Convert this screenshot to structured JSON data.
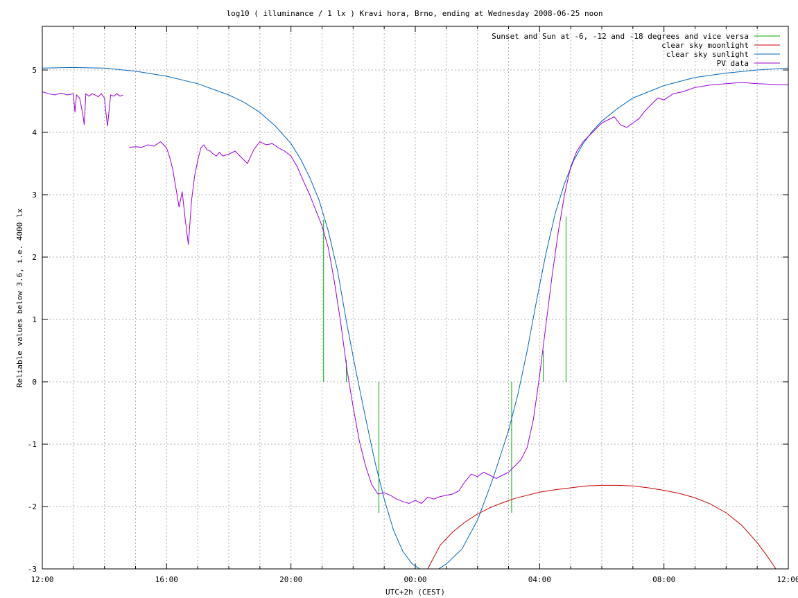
{
  "chart_data": {
    "type": "line",
    "title": "log10 ( illuminance / 1 lx ) Kravi hora, Brno, ending at Wednesday 2008-06-25 noon",
    "xlabel": "UTC+2h (CEST)",
    "ylabel": "Reliable values below 3.6, i.e. 4000 lx",
    "xlim": [
      12,
      36
    ],
    "ylim": [
      -3,
      5.7
    ],
    "x_ticks": [
      12,
      16,
      20,
      24,
      28,
      32,
      36
    ],
    "x_tick_labels": [
      "12:00",
      "16:00",
      "20:00",
      "00:00",
      "04:00",
      "08:00",
      "12:00"
    ],
    "x_minor_ticks": [
      13,
      14,
      15,
      17,
      18,
      19,
      21,
      22,
      23,
      25,
      26,
      27,
      29,
      30,
      31,
      33,
      34,
      35
    ],
    "y_ticks": [
      -3,
      -2,
      -1,
      0,
      1,
      2,
      3,
      4,
      5
    ],
    "y_tick_labels": [
      "-3",
      "-2",
      "-1",
      "0",
      "1",
      "2",
      "3",
      "4",
      "5"
    ],
    "grid": true,
    "legend_position": "top-right",
    "series": [
      {
        "name": "Sunset and Sun at -6, -12 and -18 degrees and vice versa",
        "color": "#00aa00",
        "style": "impulses",
        "x": [
          21.05,
          21.78,
          22.83,
          27.1,
          28.12,
          28.85
        ],
        "y": [
          2.6,
          0.35,
          0.0,
          0.0,
          0.5,
          2.65
        ],
        "y_end": [
          0.0,
          0.0,
          -2.1,
          -2.1,
          0.0,
          0.0
        ]
      },
      {
        "name": "clear sky moonlight",
        "color": "#cc0000",
        "x": [
          24.4,
          24.8,
          25.2,
          25.6,
          26.0,
          26.4,
          26.8,
          27.2,
          27.6,
          28.0,
          28.5,
          29.0,
          29.5,
          30.0,
          30.5,
          31.0,
          31.5,
          32.0,
          32.5,
          33.0,
          33.5,
          34.0,
          34.5,
          35.0,
          35.3,
          35.6
        ],
        "y": [
          -3.0,
          -2.62,
          -2.41,
          -2.25,
          -2.12,
          -2.02,
          -1.94,
          -1.87,
          -1.82,
          -1.77,
          -1.73,
          -1.7,
          -1.67,
          -1.66,
          -1.66,
          -1.67,
          -1.7,
          -1.74,
          -1.79,
          -1.86,
          -1.96,
          -2.1,
          -2.3,
          -2.58,
          -2.78,
          -3.0
        ]
      },
      {
        "name": "clear sky sunlight",
        "color": "#0066bb",
        "x": [
          12,
          13,
          14,
          15,
          16,
          17,
          18,
          18.5,
          19,
          19.5,
          20,
          20.3,
          20.6,
          20.9,
          21.2,
          21.5,
          21.8,
          22.1,
          22.4,
          22.7,
          23.0,
          23.3,
          23.6,
          23.9,
          24.2,
          24.35,
          24.6,
          25.0,
          25.5,
          26.0,
          26.5,
          27.0,
          27.3,
          27.6,
          27.9,
          28.2,
          28.5,
          28.8,
          29.1,
          29.4,
          29.7,
          30.0,
          30.5,
          31.0,
          32.0,
          33.0,
          34.0,
          35.0,
          36.0
        ],
        "y": [
          5.03,
          5.04,
          5.03,
          4.98,
          4.9,
          4.78,
          4.6,
          4.48,
          4.32,
          4.1,
          3.82,
          3.58,
          3.28,
          2.92,
          2.42,
          1.78,
          0.92,
          0.15,
          -0.58,
          -1.28,
          -1.88,
          -2.38,
          -2.72,
          -2.92,
          -3.02,
          -3.05,
          -3.05,
          -2.92,
          -2.68,
          -2.22,
          -1.55,
          -0.78,
          -0.2,
          0.5,
          1.3,
          2.05,
          2.7,
          3.18,
          3.55,
          3.82,
          4.02,
          4.18,
          4.38,
          4.55,
          4.75,
          4.88,
          4.95,
          5.0,
          5.03
        ]
      },
      {
        "name": "PV data",
        "color": "#9900dd",
        "segments": [
          {
            "x": [
              12.0,
              12.2,
              12.4,
              12.6,
              12.8,
              13.0,
              13.05,
              13.1,
              13.2,
              13.3,
              13.35,
              13.4,
              13.5,
              13.6,
              13.7,
              13.8,
              13.9,
              14.0,
              14.05,
              14.1,
              14.2,
              14.3,
              14.4,
              14.5,
              14.6
            ],
            "y": [
              4.65,
              4.62,
              4.6,
              4.63,
              4.6,
              4.62,
              4.32,
              4.6,
              4.55,
              4.3,
              4.12,
              4.62,
              4.58,
              4.62,
              4.6,
              4.57,
              4.62,
              4.55,
              4.3,
              4.1,
              4.6,
              4.58,
              4.62,
              4.58,
              4.6
            ]
          },
          {
            "x": [
              14.8,
              15.0,
              15.2,
              15.4,
              15.6,
              15.8,
              16.0,
              16.1,
              16.2,
              16.3,
              16.4,
              16.5,
              16.6,
              16.7,
              16.8,
              16.9,
              17.0,
              17.1,
              17.2,
              17.3,
              17.4,
              17.5,
              17.6,
              17.7,
              17.8,
              18.0,
              18.2,
              18.4,
              18.6,
              18.8,
              19.0,
              19.2,
              19.4,
              19.6,
              19.8,
              20.0,
              20.2,
              20.4,
              20.6,
              20.8,
              21.0,
              21.2,
              21.4,
              21.6,
              21.8,
              22.0,
              22.2,
              22.4,
              22.6,
              22.8,
              23.0,
              23.2,
              23.4,
              23.6,
              23.8,
              24.0,
              24.2,
              24.4,
              24.6,
              24.8,
              25.0,
              25.2,
              25.4,
              25.6,
              25.8,
              26.0,
              26.2,
              26.4,
              26.6,
              26.8,
              27.0,
              27.2,
              27.4,
              27.6,
              27.8,
              28.0,
              28.2,
              28.4,
              28.6,
              28.8,
              29.0,
              29.2,
              29.4,
              29.6,
              29.8,
              30.0,
              30.2,
              30.4,
              30.6,
              30.8,
              31.0,
              31.2,
              31.4,
              31.6,
              31.8,
              32.0,
              32.3,
              32.6,
              33.0,
              33.5,
              34.0,
              34.5,
              35.0,
              35.5,
              36.0
            ],
            "y": [
              3.76,
              3.77,
              3.76,
              3.8,
              3.78,
              3.85,
              3.75,
              3.6,
              3.4,
              3.1,
              2.8,
              3.05,
              2.6,
              2.2,
              2.9,
              3.3,
              3.55,
              3.75,
              3.8,
              3.72,
              3.7,
              3.65,
              3.62,
              3.68,
              3.62,
              3.65,
              3.7,
              3.6,
              3.5,
              3.72,
              3.85,
              3.8,
              3.82,
              3.75,
              3.7,
              3.62,
              3.45,
              3.22,
              3.0,
              2.75,
              2.5,
              2.15,
              1.6,
              0.95,
              0.2,
              -0.4,
              -0.95,
              -1.35,
              -1.65,
              -1.8,
              -1.78,
              -1.82,
              -1.88,
              -1.92,
              -1.95,
              -1.9,
              -1.95,
              -1.85,
              -1.88,
              -1.84,
              -1.82,
              -1.8,
              -1.75,
              -1.6,
              -1.48,
              -1.52,
              -1.45,
              -1.5,
              -1.55,
              -1.5,
              -1.45,
              -1.35,
              -1.25,
              -1.05,
              -0.6,
              0.1,
              0.9,
              1.7,
              2.4,
              3.0,
              3.45,
              3.7,
              3.85,
              3.95,
              4.05,
              4.15,
              4.2,
              4.25,
              4.12,
              4.08,
              4.15,
              4.22,
              4.35,
              4.45,
              4.55,
              4.52,
              4.62,
              4.65,
              4.72,
              4.76,
              4.78,
              4.8,
              4.78,
              4.77,
              4.76
            ]
          }
        ]
      }
    ]
  }
}
